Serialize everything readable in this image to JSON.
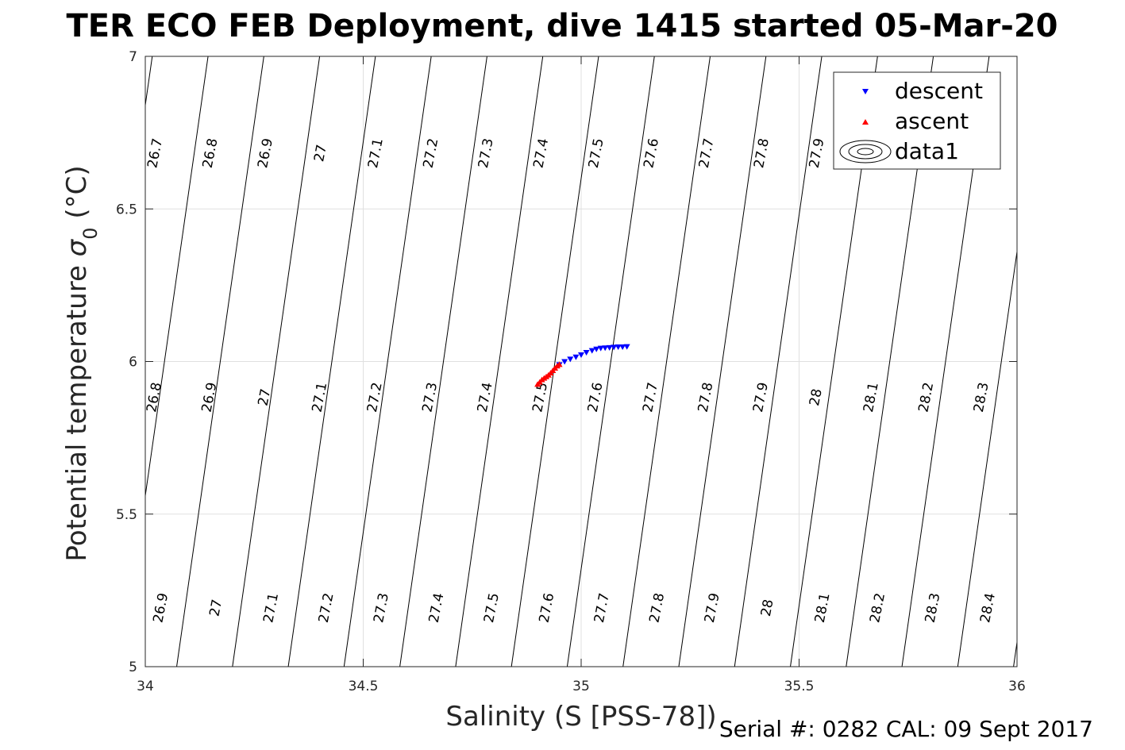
{
  "chart_data": {
    "type": "scatter",
    "title": "TER ECO FEB Deployment, dive 1415 started 05-Mar-20",
    "xlabel": "Salinity (S [PSS-78])",
    "ylabel_main": "Potential temperature ",
    "ylabel_symbol": "σ",
    "ylabel_subscript": "0",
    "ylabel_unit": " (°C)",
    "xlim": [
      34,
      36
    ],
    "ylim": [
      5,
      7
    ],
    "xticks": [
      "34",
      "34.5",
      "35",
      "35.5",
      "36"
    ],
    "yticks": [
      "5",
      "5.5",
      "6",
      "6.5",
      "7"
    ],
    "grid": true,
    "legend_position": "top-right",
    "legend": [
      "descent",
      "ascent",
      "data1"
    ],
    "colors": {
      "descent": "#0000ff",
      "ascent": "#ff0000",
      "contour": "#000000",
      "grid": "#e0e0e0",
      "axis": "#262626"
    },
    "series": [
      {
        "name": "descent",
        "marker": "triangle-down",
        "x": [
          34.95,
          34.962,
          34.975,
          34.988,
          35.0,
          35.012,
          35.025,
          35.035,
          35.045,
          35.055,
          35.065,
          35.075,
          35.085,
          35.095,
          35.105
        ],
        "y": [
          5.99,
          6.0,
          6.008,
          6.015,
          6.022,
          6.03,
          6.036,
          6.041,
          6.044,
          6.045,
          6.046,
          6.047,
          6.048,
          6.048,
          6.049
        ]
      },
      {
        "name": "ascent",
        "marker": "triangle-up",
        "x": [
          34.9,
          34.905,
          34.91,
          34.915,
          34.92,
          34.925,
          34.93,
          34.935,
          34.94,
          34.945,
          34.95
        ],
        "y": [
          5.925,
          5.932,
          5.94,
          5.945,
          5.95,
          5.955,
          5.962,
          5.97,
          5.978,
          5.985,
          5.99
        ]
      }
    ],
    "contour_labels": {
      "top": [
        "26.7",
        "26.8",
        "26.9",
        "27",
        "27.1",
        "27.2",
        "27.3",
        "27.4",
        "27.5",
        "27.6",
        "27.7",
        "27.8",
        "27.9"
      ],
      "middle": [
        "26.8",
        "26.9",
        "27",
        "27.1",
        "27.2",
        "27.3",
        "27.4",
        "27.5",
        "27.6",
        "27.7",
        "27.8",
        "27.9",
        "28",
        "28.1",
        "28.2",
        "28.3"
      ],
      "bottom": [
        "26.9",
        "27",
        "27.1",
        "27.2",
        "27.3",
        "27.4",
        "27.5",
        "27.6",
        "27.7",
        "27.8",
        "27.9",
        "28",
        "28.1",
        "28.2",
        "28.3",
        "28.4"
      ]
    },
    "footer": "Serial #: 0282  CAL: 09 Sept 2017"
  }
}
